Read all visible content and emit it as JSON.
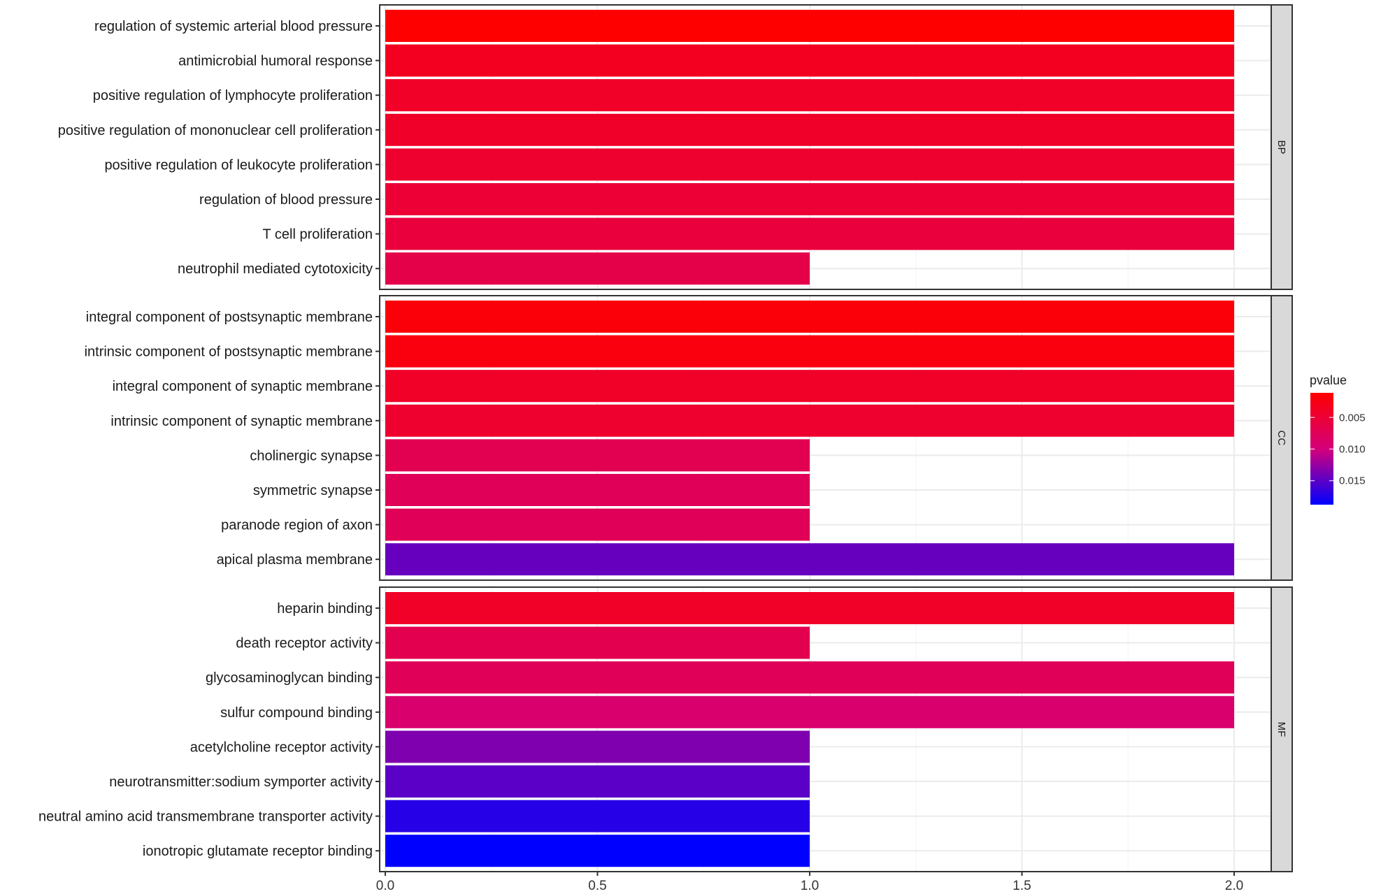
{
  "chart_data": {
    "type": "bar",
    "orientation": "horizontal",
    "xlabel": "",
    "ylabel": "",
    "xlim": [
      0,
      2.1
    ],
    "x_ticks": [
      "0.0",
      "0.5",
      "1.0",
      "1.5",
      "2.0"
    ],
    "x_tick_values": [
      0,
      0.5,
      1.0,
      1.5,
      2.0
    ],
    "grid": true,
    "facets": [
      {
        "name": "BP",
        "bars": [
          {
            "label": "regulation of systemic arterial blood pressure",
            "value": 2,
            "pvalue": 0.0012
          },
          {
            "label": "antimicrobial humoral response",
            "value": 2,
            "pvalue": 0.0035
          },
          {
            "label": "positive regulation of lymphocyte proliferation",
            "value": 2,
            "pvalue": 0.004
          },
          {
            "label": "positive regulation of mononuclear cell proliferation",
            "value": 2,
            "pvalue": 0.0041
          },
          {
            "label": "positive regulation of leukocyte proliferation",
            "value": 2,
            "pvalue": 0.0045
          },
          {
            "label": "regulation of blood pressure",
            "value": 2,
            "pvalue": 0.005
          },
          {
            "label": "T cell proliferation",
            "value": 2,
            "pvalue": 0.0055
          },
          {
            "label": "neutrophil mediated cytotoxicity",
            "value": 1,
            "pvalue": 0.0065
          }
        ]
      },
      {
        "name": "CC",
        "bars": [
          {
            "label": "integral component of postsynaptic membrane",
            "value": 2,
            "pvalue": 0.0018
          },
          {
            "label": "intrinsic component of postsynaptic membrane",
            "value": 2,
            "pvalue": 0.0022
          },
          {
            "label": "integral component of synaptic membrane",
            "value": 2,
            "pvalue": 0.004
          },
          {
            "label": "intrinsic component of synaptic membrane",
            "value": 2,
            "pvalue": 0.0045
          },
          {
            "label": "cholinergic synapse",
            "value": 1,
            "pvalue": 0.007
          },
          {
            "label": "symmetric synapse",
            "value": 1,
            "pvalue": 0.0074
          },
          {
            "label": "paranode region of axon",
            "value": 1,
            "pvalue": 0.0074
          },
          {
            "label": "apical plasma membrane",
            "value": 2,
            "pvalue": 0.0145
          }
        ]
      },
      {
        "name": "MF",
        "bars": [
          {
            "label": "heparin binding",
            "value": 2,
            "pvalue": 0.004
          },
          {
            "label": "death receptor activity",
            "value": 1,
            "pvalue": 0.0068
          },
          {
            "label": "glycosaminoglycan binding",
            "value": 2,
            "pvalue": 0.0075
          },
          {
            "label": "sulfur compound binding",
            "value": 2,
            "pvalue": 0.009
          },
          {
            "label": "acetylcholine receptor activity",
            "value": 1,
            "pvalue": 0.0135
          },
          {
            "label": "neurotransmitter:sodium symporter activity",
            "value": 1,
            "pvalue": 0.015
          },
          {
            "label": "neutral amino acid transmembrane transporter activity",
            "value": 1,
            "pvalue": 0.0172
          },
          {
            "label": "ionotropic glutamate receptor binding",
            "value": 1,
            "pvalue": 0.0188
          }
        ]
      }
    ],
    "legend": {
      "title": "pvalue",
      "placement": "right",
      "ticks": [
        "0.005",
        "0.010",
        "0.015"
      ],
      "tick_values": [
        0.005,
        0.01,
        0.015
      ],
      "range": [
        0.0011,
        0.0188
      ],
      "low_color": "#ff0000",
      "high_color": "#0000ff"
    }
  }
}
